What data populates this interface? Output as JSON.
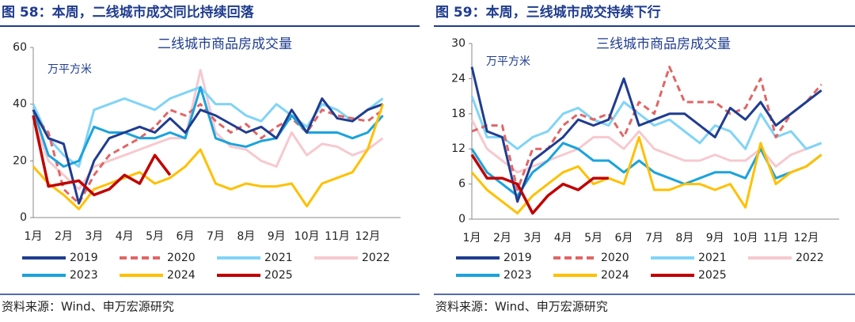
{
  "chart_data": [
    {
      "type": "line",
      "figure_title": "图 58：本周，二线城市成交同比持续回落",
      "title": "二线城市商品房成交量",
      "unit_label": "万平方米",
      "source": "资料来源：Wind、申万宏源研究",
      "categories": [
        "1月",
        null,
        "2月",
        null,
        "3月",
        null,
        "4月",
        null,
        "5月",
        null,
        "6月",
        null,
        "7月",
        null,
        "8月",
        null,
        "9月",
        null,
        "10月",
        null,
        "11月",
        null,
        "12月",
        null
      ],
      "ylim": [
        0,
        60
      ],
      "yticks": [
        0,
        20,
        40,
        60
      ],
      "series": [
        {
          "name": "2019",
          "color": "#1f3c8f",
          "values": [
            38,
            28,
            26,
            5,
            20,
            28,
            30,
            32,
            30,
            35,
            30,
            38,
            36,
            33,
            30,
            32,
            28,
            38,
            30,
            42,
            35,
            34,
            38,
            40
          ]
        },
        {
          "name": "2020",
          "color": "#e06666",
          "dashed": true,
          "values": [
            36,
            30,
            10,
            5,
            15,
            22,
            25,
            28,
            32,
            38,
            36,
            40,
            34,
            30,
            33,
            28,
            32,
            35,
            30,
            38,
            36,
            35,
            34,
            38
          ]
        },
        {
          "name": "2021",
          "color": "#80d4f6",
          "values": [
            40,
            28,
            22,
            18,
            38,
            40,
            42,
            40,
            38,
            42,
            44,
            46,
            40,
            40,
            36,
            34,
            40,
            36,
            32,
            40,
            38,
            34,
            38,
            42
          ]
        },
        {
          "name": "2022",
          "color": "#f6c9cf",
          "values": [
            35,
            20,
            15,
            10,
            18,
            20,
            22,
            24,
            26,
            28,
            28,
            52,
            30,
            25,
            24,
            20,
            18,
            30,
            22,
            26,
            25,
            22,
            24,
            28
          ]
        },
        {
          "name": "2023",
          "color": "#1aa3dc",
          "values": [
            38,
            22,
            18,
            20,
            32,
            30,
            30,
            28,
            28,
            30,
            28,
            46,
            28,
            26,
            25,
            27,
            28,
            36,
            30,
            30,
            30,
            28,
            30,
            36
          ]
        },
        {
          "name": "2024",
          "color": "#ffc000",
          "values": [
            18,
            12,
            8,
            3,
            10,
            12,
            14,
            16,
            12,
            14,
            18,
            24,
            12,
            10,
            12,
            11,
            11,
            12,
            4,
            12,
            14,
            16,
            24,
            40
          ]
        },
        {
          "name": "2025",
          "color": "#c00000",
          "values": [
            36,
            11,
            12,
            13,
            8,
            10,
            15,
            12,
            22,
            15,
            null,
            null,
            null,
            null,
            null,
            null,
            null,
            null,
            null,
            null,
            null,
            null,
            null,
            null
          ]
        }
      ]
    },
    {
      "type": "line",
      "figure_title": "图 59：本周，三线城市成交持续下行",
      "title": "三线城市商品房成交量",
      "unit_label": "万平方米",
      "source": "资料来源：Wind、申万宏源研究",
      "categories": [
        "1月",
        null,
        "2月",
        null,
        "3月",
        null,
        "4月",
        null,
        "5月",
        null,
        "6月",
        null,
        "7月",
        null,
        "8月",
        null,
        "9月",
        null,
        "10月",
        null,
        "11月",
        null,
        "12月",
        null
      ],
      "ylim": [
        0,
        30
      ],
      "yticks": [
        0,
        6,
        12,
        18,
        24,
        30
      ],
      "series": [
        {
          "name": "2019",
          "color": "#1f3c8f",
          "values": [
            26,
            15,
            14,
            3,
            10,
            12,
            14,
            17,
            16,
            17,
            24,
            16,
            17,
            18,
            18,
            16,
            14,
            19,
            17,
            20,
            16,
            18,
            20,
            22
          ]
        },
        {
          "name": "2020",
          "color": "#e06666",
          "dashed": true,
          "values": [
            15,
            16,
            16,
            5,
            12,
            12,
            16,
            18,
            17,
            18,
            14,
            20,
            18,
            26,
            20,
            20,
            20,
            18,
            19,
            24,
            14,
            18,
            20,
            23
          ]
        },
        {
          "name": "2021",
          "color": "#80d4f6",
          "values": [
            21,
            14,
            14,
            12,
            14,
            15,
            18,
            19,
            17,
            16,
            20,
            18,
            16,
            17,
            15,
            13,
            16,
            15,
            12,
            18,
            14,
            15,
            12,
            13
          ]
        },
        {
          "name": "2022",
          "color": "#f6c9cf",
          "values": [
            17,
            12,
            10,
            8,
            9,
            10,
            11,
            12,
            14,
            14,
            12,
            15,
            12,
            11,
            10,
            10,
            11,
            10,
            10,
            12,
            9,
            11,
            12,
            13
          ]
        },
        {
          "name": "2023",
          "color": "#1aa3dc",
          "values": [
            12,
            8,
            6,
            4,
            8,
            10,
            13,
            12,
            10,
            10,
            8,
            10,
            8,
            7,
            6,
            7,
            8,
            8,
            7,
            12,
            7,
            8,
            9,
            11
          ]
        },
        {
          "name": "2024",
          "color": "#ffc000",
          "values": [
            8,
            5,
            3,
            1,
            4,
            6,
            8,
            9,
            6,
            7,
            6,
            14,
            5,
            5,
            6,
            6,
            5,
            6,
            2,
            13,
            6,
            8,
            9,
            11
          ]
        },
        {
          "name": "2025",
          "color": "#c00000",
          "values": [
            11,
            7,
            7,
            6,
            1,
            4,
            6,
            5,
            7,
            7,
            null,
            null,
            null,
            null,
            null,
            null,
            null,
            null,
            null,
            null,
            null,
            null,
            null,
            null
          ]
        }
      ]
    }
  ]
}
